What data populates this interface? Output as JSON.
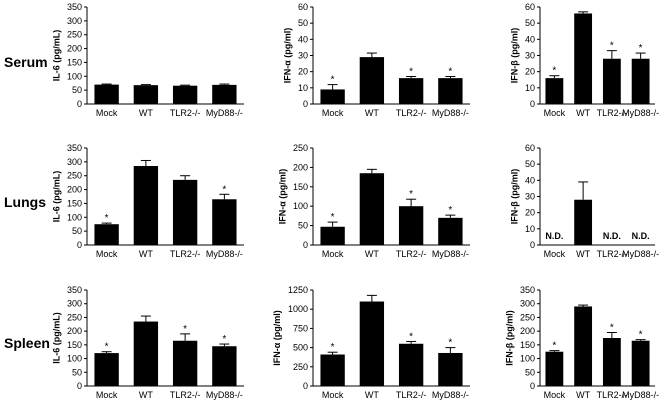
{
  "row_labels": [
    "Serum",
    "Lungs",
    "Spleen"
  ],
  "chart_data": [
    {
      "type": "bar",
      "row": "Serum",
      "ylabel": "IL-6 (pg/mL)",
      "ylim": [
        0,
        350
      ],
      "ticks": [
        0,
        50,
        100,
        150,
        200,
        250,
        300,
        350
      ],
      "categories": [
        "Mock",
        "WT",
        "TLR2-/-",
        "MyD88-/-"
      ],
      "values": [
        70,
        68,
        66,
        69
      ],
      "errors": [
        2,
        2,
        2,
        3
      ],
      "annotations": [
        "",
        "",
        "",
        ""
      ]
    },
    {
      "type": "bar",
      "row": "Serum",
      "ylabel": "IFN-α (pg/ml)",
      "ylim": [
        0,
        60
      ],
      "ticks": [
        0,
        10,
        20,
        30,
        40,
        50,
        60
      ],
      "categories": [
        "Mock",
        "WT",
        "TLR2-/-",
        "MyD88-/-"
      ],
      "values": [
        9,
        29,
        16,
        16
      ],
      "errors": [
        3,
        2.5,
        1,
        1
      ],
      "annotations": [
        "*",
        "",
        "*",
        "*"
      ]
    },
    {
      "type": "bar",
      "row": "Serum",
      "ylabel": "IFN-β (pg/ml)",
      "ylim": [
        0,
        60
      ],
      "ticks": [
        0,
        10,
        20,
        30,
        40,
        50,
        60
      ],
      "categories": [
        "Mock",
        "WT",
        "TLR2-/-",
        "MyD88-/-"
      ],
      "values": [
        16,
        56,
        28,
        28
      ],
      "errors": [
        1.5,
        1,
        5,
        3.5
      ],
      "annotations": [
        "*",
        "",
        "*",
        "*"
      ]
    },
    {
      "type": "bar",
      "row": "Lungs",
      "ylabel": "IL-6 (pg/mL)",
      "ylim": [
        0,
        350
      ],
      "ticks": [
        0,
        50,
        100,
        150,
        200,
        250,
        300,
        350
      ],
      "categories": [
        "Mock",
        "WT",
        "TLR2-/-",
        "MyD88-/-"
      ],
      "values": [
        75,
        285,
        235,
        165
      ],
      "errors": [
        4,
        20,
        15,
        18
      ],
      "annotations": [
        "*",
        "",
        "",
        "*"
      ]
    },
    {
      "type": "bar",
      "row": "Lungs",
      "ylabel": "IFN-α (pg/ml)",
      "ylim": [
        0,
        250
      ],
      "ticks": [
        0,
        50,
        100,
        150,
        200,
        250
      ],
      "categories": [
        "Mock",
        "WT",
        "TLR2-/-",
        "MyD88-/-"
      ],
      "values": [
        47,
        185,
        100,
        70
      ],
      "errors": [
        12,
        10,
        18,
        7
      ],
      "annotations": [
        "*",
        "",
        "*",
        "*"
      ]
    },
    {
      "type": "bar",
      "row": "Lungs",
      "ylabel": "IFN-β (pg/ml)",
      "ylim": [
        0,
        60
      ],
      "ticks": [
        0,
        10,
        20,
        30,
        40,
        50,
        60
      ],
      "categories": [
        "Mock",
        "WT",
        "TLR2-/-",
        "MyD88-/-"
      ],
      "values": [
        0,
        28,
        0,
        0
      ],
      "errors": [
        0,
        11,
        0,
        0
      ],
      "annotations": [
        "N.D.",
        "",
        "N.D.",
        "N.D."
      ]
    },
    {
      "type": "bar",
      "row": "Spleen",
      "ylabel": "IL-6 (pg/mL)",
      "ylim": [
        0,
        350
      ],
      "ticks": [
        0,
        50,
        100,
        150,
        200,
        250,
        300,
        350
      ],
      "categories": [
        "Mock",
        "WT",
        "TLR2-/-",
        "MyD88-/-"
      ],
      "values": [
        120,
        235,
        165,
        145
      ],
      "errors": [
        5,
        20,
        25,
        8
      ],
      "annotations": [
        "*",
        "",
        "*",
        "*"
      ]
    },
    {
      "type": "bar",
      "row": "Spleen",
      "ylabel": "IFN-α (pg/ml)",
      "ylim": [
        0,
        1250
      ],
      "ticks": [
        0,
        250,
        500,
        750,
        1000,
        1250
      ],
      "categories": [
        "Mock",
        "WT",
        "TLR2-/-",
        "MyD88-/-"
      ],
      "values": [
        410,
        1100,
        550,
        430
      ],
      "errors": [
        30,
        80,
        30,
        70
      ],
      "annotations": [
        "*",
        "",
        "*",
        "*"
      ]
    },
    {
      "type": "bar",
      "row": "Spleen",
      "ylabel": "IFN-β (pg/ml)",
      "ylim": [
        0,
        350
      ],
      "ticks": [
        0,
        50,
        100,
        150,
        200,
        250,
        300,
        350
      ],
      "categories": [
        "Mock",
        "WT",
        "TLR2-/-",
        "MyD88-/-"
      ],
      "values": [
        125,
        290,
        175,
        165
      ],
      "errors": [
        4,
        5,
        20,
        4
      ],
      "annotations": [
        "*",
        "",
        "*",
        "*"
      ]
    }
  ]
}
